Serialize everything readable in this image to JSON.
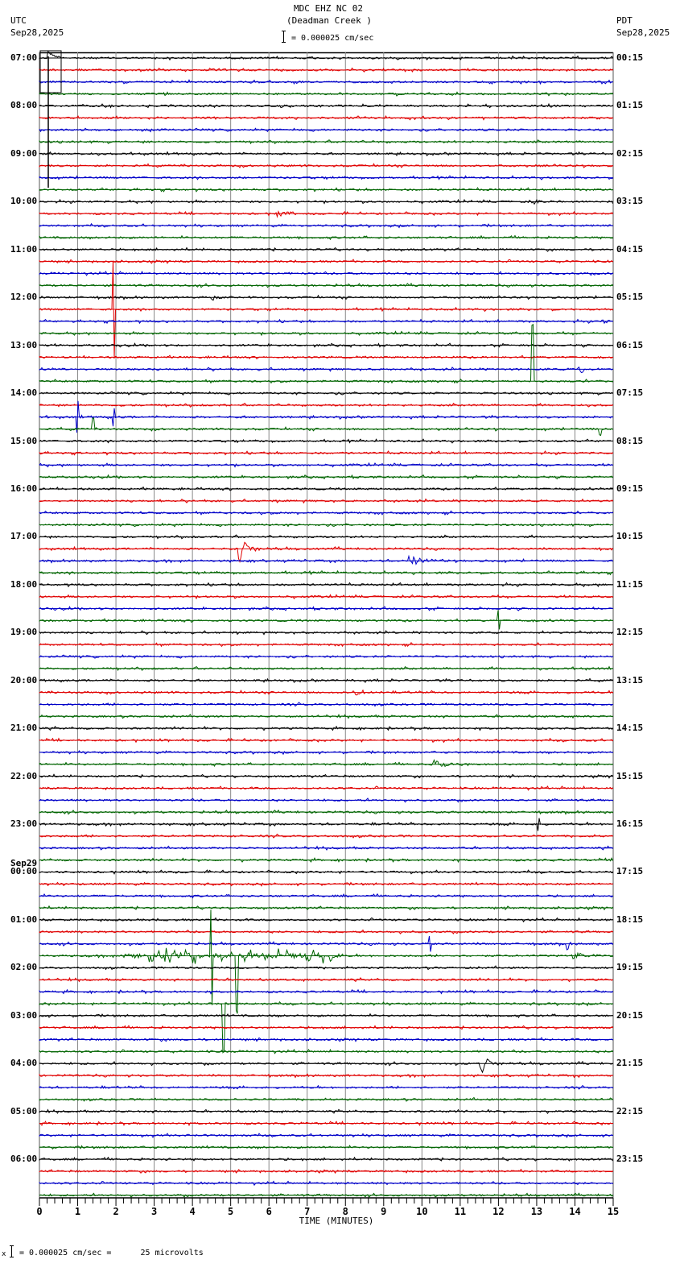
{
  "header": {
    "title": "MDC EHZ NC 02",
    "subtitle": "(Deadman Creek )",
    "scale_text": "= 0.000025 cm/sec",
    "left_tz": "UTC",
    "left_date": "Sep28,2025",
    "right_tz": "PDT",
    "right_date": "Sep28,2025"
  },
  "footer": {
    "prefix": "x",
    "scale_text": "= 0.000025 cm/sec =      25 microvolts"
  },
  "chart_data": {
    "type": "line",
    "title": "MDC EHZ NC 02 (Deadman Creek )",
    "xlabel": "TIME (MINUTES)",
    "ylabel": "",
    "xlim": [
      0,
      15
    ],
    "x_ticks": [
      "0",
      "1",
      "2",
      "3",
      "4",
      "5",
      "6",
      "7",
      "8",
      "9",
      "10",
      "11",
      "12",
      "13",
      "14",
      "15"
    ],
    "grid": true,
    "traces_per_hour": 4,
    "minutes_per_trace": 15,
    "trace_colors": [
      "#000000",
      "#e00000",
      "#0000c8",
      "#006400"
    ],
    "left_labels": [
      {
        "row": 0,
        "text": "07:00"
      },
      {
        "row": 4,
        "text": "08:00"
      },
      {
        "row": 8,
        "text": "09:00"
      },
      {
        "row": 12,
        "text": "10:00"
      },
      {
        "row": 16,
        "text": "11:00"
      },
      {
        "row": 20,
        "text": "12:00"
      },
      {
        "row": 24,
        "text": "13:00"
      },
      {
        "row": 28,
        "text": "14:00"
      },
      {
        "row": 32,
        "text": "15:00"
      },
      {
        "row": 36,
        "text": "16:00"
      },
      {
        "row": 40,
        "text": "17:00"
      },
      {
        "row": 44,
        "text": "18:00"
      },
      {
        "row": 48,
        "text": "19:00"
      },
      {
        "row": 52,
        "text": "20:00"
      },
      {
        "row": 56,
        "text": "21:00"
      },
      {
        "row": 60,
        "text": "22:00"
      },
      {
        "row": 64,
        "text": "23:00"
      },
      {
        "row": 68,
        "text": "00:00",
        "date": "Sep29"
      },
      {
        "row": 72,
        "text": "01:00"
      },
      {
        "row": 76,
        "text": "02:00"
      },
      {
        "row": 80,
        "text": "03:00"
      },
      {
        "row": 84,
        "text": "04:00"
      },
      {
        "row": 88,
        "text": "05:00"
      },
      {
        "row": 92,
        "text": "06:00"
      }
    ],
    "right_labels": [
      "00:15",
      "01:15",
      "02:15",
      "03:15",
      "04:15",
      "05:15",
      "06:15",
      "07:15",
      "08:15",
      "09:15",
      "10:15",
      "11:15",
      "12:15",
      "13:15",
      "14:15",
      "15:15",
      "16:15",
      "17:15",
      "18:15",
      "19:15",
      "20:15",
      "21:15",
      "22:15",
      "23:15"
    ],
    "events": [
      {
        "row": 0,
        "minute": 0.2,
        "amp": 30,
        "type": "step"
      },
      {
        "row": 13,
        "minute": 6.2,
        "amp": 8,
        "type": "quake"
      },
      {
        "row": 12,
        "minute": 12.8,
        "amp": 4,
        "type": "quake"
      },
      {
        "row": 20,
        "minute": 4.5,
        "amp": 4,
        "type": "quake"
      },
      {
        "row": 21,
        "minute": 1.95,
        "amp": 60,
        "type": "spike"
      },
      {
        "row": 22,
        "minute": 14.7,
        "amp": 4,
        "type": "quake"
      },
      {
        "row": 26,
        "minute": 14.05,
        "amp": 7,
        "type": "quake"
      },
      {
        "row": 27,
        "minute": 12.9,
        "amp": 70,
        "type": "spike"
      },
      {
        "row": 30,
        "minute": 1.0,
        "amp": 20,
        "type": "spike"
      },
      {
        "row": 30,
        "minute": 1.95,
        "amp": 12,
        "type": "spike"
      },
      {
        "row": 31,
        "minute": 1.4,
        "amp": 14,
        "type": "spike"
      },
      {
        "row": 31,
        "minute": 14.65,
        "amp": 8,
        "type": "spike"
      },
      {
        "row": 41,
        "minute": 5.2,
        "amp": 18,
        "type": "quake"
      },
      {
        "row": 42,
        "minute": 9.65,
        "amp": 10,
        "type": "quake"
      },
      {
        "row": 47,
        "minute": 12.0,
        "amp": 12,
        "type": "spike"
      },
      {
        "row": 53,
        "minute": 8.2,
        "amp": 6,
        "type": "quake"
      },
      {
        "row": 59,
        "minute": 10.3,
        "amp": 8,
        "type": "quake"
      },
      {
        "row": 64,
        "minute": 13.05,
        "amp": 8,
        "type": "spike"
      },
      {
        "row": 74,
        "minute": 10.2,
        "amp": 10,
        "type": "spike"
      },
      {
        "row": 74,
        "minute": 13.8,
        "amp": 7,
        "type": "spike"
      },
      {
        "row": 75,
        "minute": 13.9,
        "amp": 8,
        "type": "quake"
      },
      {
        "row": 75,
        "minute": 2.2,
        "amp": 10,
        "type": "swarm"
      },
      {
        "row": 75,
        "minute": 4.5,
        "amp": 60,
        "type": "spike"
      },
      {
        "row": 75,
        "minute": 5.15,
        "amp": 70,
        "type": "spike"
      },
      {
        "row": 79,
        "minute": 4.8,
        "amp": 60,
        "type": "spike"
      },
      {
        "row": 84,
        "minute": 11.5,
        "amp": 14,
        "type": "quake"
      }
    ]
  }
}
